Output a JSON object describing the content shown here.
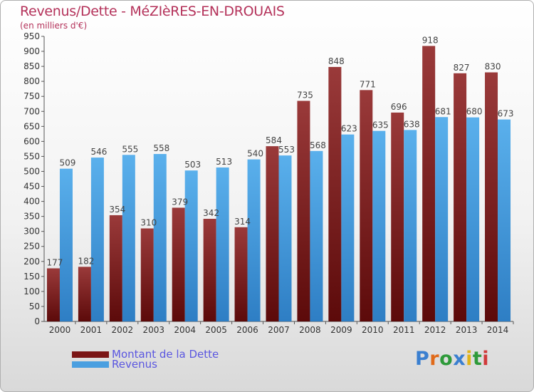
{
  "header": {
    "title": "Revenus/Dette - MéZIèRES-EN-DROUAIS",
    "subtitle": "(en milliers d'€)"
  },
  "legend": {
    "items": [
      {
        "label": "Montant de la Dette",
        "color": "#7b1515"
      },
      {
        "label": "Revenus",
        "color": "#4a9fe0"
      }
    ]
  },
  "logo": {
    "text": "Proxiti"
  },
  "colors": {
    "title": "#b4325a",
    "dette_top": "#9a3a3a",
    "dette_bottom": "#5c0a0a",
    "revenus_top": "#5ab0ec",
    "revenus_bottom": "#2e7ec4",
    "legend_text": "#5a56e0"
  },
  "chart_data": {
    "type": "bar",
    "title": "Revenus/Dette - MéZIèRES-EN-DROUAIS",
    "ylabel": "(en milliers d'€)",
    "xlabel": "",
    "ylim": [
      0,
      950
    ],
    "ytick_step": 50,
    "grid": false,
    "legend_position": "bottom-left",
    "categories": [
      "2000",
      "2001",
      "2002",
      "2003",
      "2004",
      "2005",
      "2006",
      "2007",
      "2008",
      "2009",
      "2010",
      "2011",
      "2012",
      "2013",
      "2014"
    ],
    "series": [
      {
        "name": "Montant de la Dette",
        "values": [
          177,
          182,
          354,
          310,
          379,
          342,
          314,
          584,
          735,
          848,
          771,
          696,
          918,
          827,
          830
        ]
      },
      {
        "name": "Revenus",
        "values": [
          509,
          546,
          555,
          558,
          503,
          513,
          540,
          553,
          568,
          623,
          635,
          638,
          681,
          680,
          673
        ]
      }
    ]
  }
}
